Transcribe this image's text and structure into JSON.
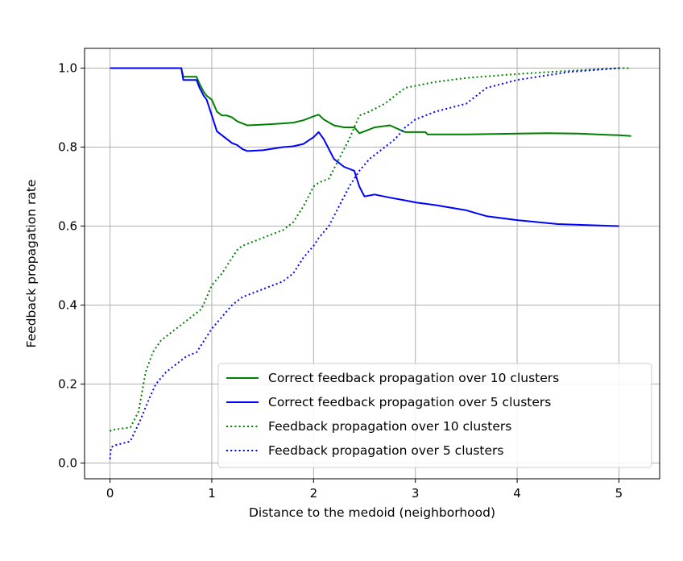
{
  "chart_data": {
    "type": "line",
    "title": "",
    "xlabel": "Distance to the medoid (neighborhood)",
    "ylabel": "Feedback propagation rate",
    "xlim": [
      -0.25,
      5.4
    ],
    "ylim": [
      -0.04,
      1.05
    ],
    "xticks": [
      0,
      1,
      2,
      3,
      4,
      5
    ],
    "xtick_labels": [
      "0",
      "1",
      "2",
      "3",
      "4",
      "5"
    ],
    "yticks": [
      0.0,
      0.2,
      0.4,
      0.6,
      0.8,
      1.0
    ],
    "ytick_labels": [
      "0.0",
      "0.2",
      "0.4",
      "0.6",
      "0.8",
      "1.0"
    ],
    "grid": true,
    "legend_position": "lower-right",
    "series": [
      {
        "name": "Correct feedback propagation over 10 clusters",
        "color": "#008000",
        "style": "solid",
        "x": [
          0,
          0.7,
          0.72,
          0.85,
          0.88,
          0.92,
          0.95,
          1.0,
          1.05,
          1.1,
          1.15,
          1.2,
          1.25,
          1.3,
          1.35,
          1.5,
          1.7,
          1.8,
          1.9,
          2.0,
          2.05,
          2.1,
          2.2,
          2.3,
          2.4,
          2.45,
          2.5,
          2.6,
          2.75,
          2.9,
          3.0,
          3.1,
          3.12,
          3.5,
          4.0,
          4.3,
          4.6,
          5.0,
          5.12
        ],
        "y": [
          1.0,
          1.0,
          0.978,
          0.978,
          0.96,
          0.94,
          0.93,
          0.92,
          0.89,
          0.88,
          0.88,
          0.875,
          0.865,
          0.86,
          0.855,
          0.857,
          0.86,
          0.862,
          0.868,
          0.878,
          0.882,
          0.87,
          0.855,
          0.85,
          0.85,
          0.835,
          0.84,
          0.85,
          0.855,
          0.838,
          0.838,
          0.838,
          0.832,
          0.832,
          0.834,
          0.835,
          0.834,
          0.83,
          0.828
        ]
      },
      {
        "name": "Correct feedback propagation over 5 clusters",
        "color": "#0000ff",
        "style": "solid",
        "x": [
          0,
          0.7,
          0.72,
          0.85,
          0.88,
          0.92,
          0.95,
          1.0,
          1.05,
          1.1,
          1.15,
          1.2,
          1.25,
          1.3,
          1.35,
          1.5,
          1.7,
          1.8,
          1.9,
          2.0,
          2.05,
          2.1,
          2.2,
          2.3,
          2.4,
          2.45,
          2.5,
          2.6,
          2.75,
          2.9,
          3.0,
          3.2,
          3.5,
          3.7,
          4.0,
          4.4,
          5.0
        ],
        "y": [
          1.0,
          1.0,
          0.97,
          0.97,
          0.95,
          0.93,
          0.92,
          0.88,
          0.84,
          0.83,
          0.82,
          0.81,
          0.805,
          0.795,
          0.79,
          0.792,
          0.8,
          0.802,
          0.808,
          0.825,
          0.838,
          0.82,
          0.77,
          0.75,
          0.74,
          0.7,
          0.675,
          0.68,
          0.672,
          0.665,
          0.66,
          0.653,
          0.64,
          0.625,
          0.615,
          0.605,
          0.6
        ]
      },
      {
        "name": "Feedback propagation over 10 clusters",
        "color": "#008000",
        "style": "dotted",
        "x": [
          0,
          0.01,
          0.05,
          0.2,
          0.28,
          0.35,
          0.42,
          0.5,
          0.6,
          0.75,
          0.9,
          1.0,
          1.1,
          1.2,
          1.25,
          1.3,
          1.5,
          1.7,
          1.8,
          1.9,
          2.0,
          2.05,
          2.15,
          2.25,
          2.35,
          2.45,
          2.55,
          2.7,
          2.8,
          2.9,
          3.0,
          3.2,
          3.5,
          4.0,
          4.5,
          5.0,
          5.1
        ],
        "y": [
          0.08,
          0.083,
          0.085,
          0.09,
          0.13,
          0.23,
          0.28,
          0.31,
          0.33,
          0.36,
          0.39,
          0.45,
          0.48,
          0.52,
          0.54,
          0.55,
          0.57,
          0.59,
          0.61,
          0.65,
          0.7,
          0.71,
          0.72,
          0.77,
          0.82,
          0.88,
          0.89,
          0.91,
          0.93,
          0.95,
          0.955,
          0.965,
          0.975,
          0.985,
          0.993,
          1.0,
          1.0
        ]
      },
      {
        "name": "Feedback propagation over 5 clusters",
        "color": "#0000ff",
        "style": "dotted",
        "x": [
          0,
          0.01,
          0.05,
          0.2,
          0.3,
          0.38,
          0.45,
          0.55,
          0.65,
          0.75,
          0.85,
          0.95,
          1.0,
          1.1,
          1.2,
          1.3,
          1.4,
          1.5,
          1.7,
          1.8,
          1.9,
          2.0,
          2.05,
          2.15,
          2.25,
          2.35,
          2.45,
          2.55,
          2.7,
          2.8,
          2.9,
          3.0,
          3.2,
          3.5,
          3.7,
          4.0,
          4.5,
          5.0
        ],
        "y": [
          0.01,
          0.04,
          0.045,
          0.055,
          0.11,
          0.16,
          0.2,
          0.23,
          0.25,
          0.27,
          0.28,
          0.32,
          0.34,
          0.37,
          0.4,
          0.42,
          0.43,
          0.44,
          0.46,
          0.48,
          0.52,
          0.55,
          0.57,
          0.6,
          0.65,
          0.7,
          0.74,
          0.77,
          0.8,
          0.82,
          0.85,
          0.87,
          0.89,
          0.91,
          0.95,
          0.97,
          0.99,
          1.0
        ]
      }
    ]
  }
}
